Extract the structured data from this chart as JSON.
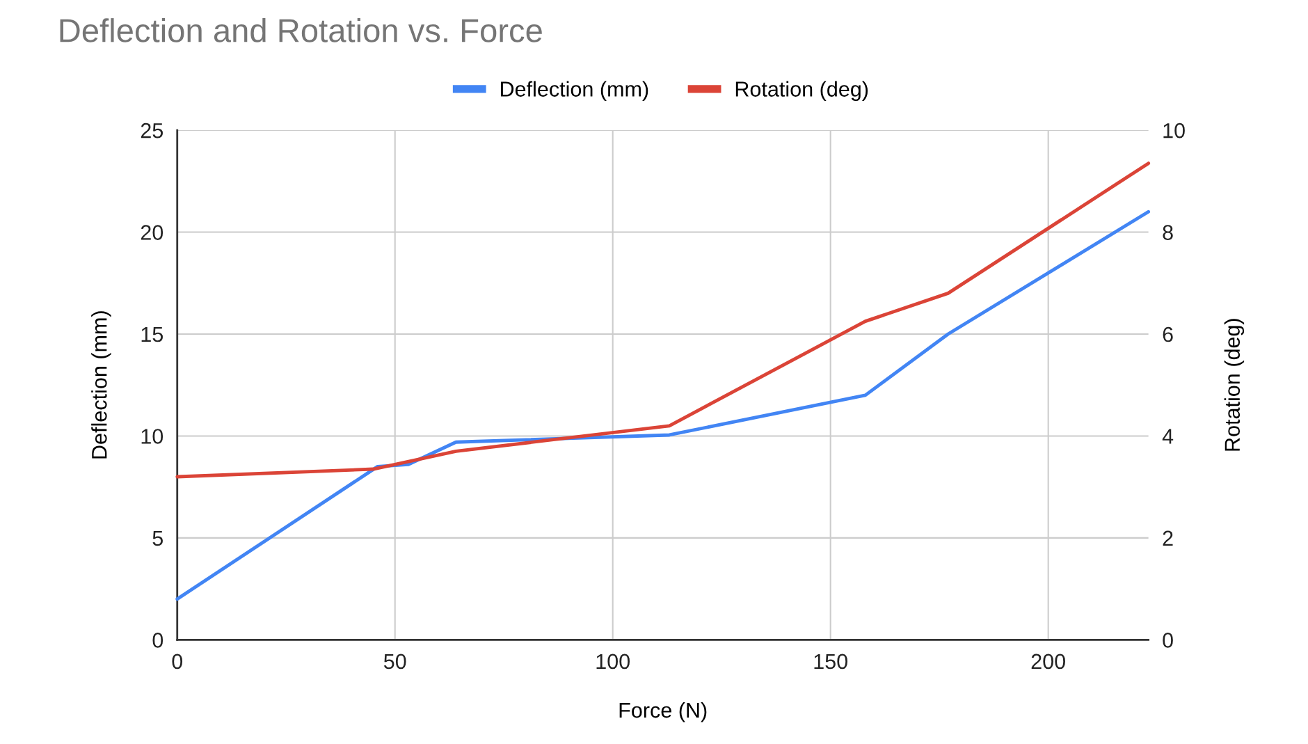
{
  "chart_data": {
    "type": "line",
    "title": "Deflection and Rotation vs. Force",
    "xlabel": "Force (N)",
    "ylabel": "Deflection (mm)",
    "y2label": "Rotation (deg)",
    "series": [
      {
        "name": "Deflection (mm)",
        "color": "#4285f4",
        "x": [
          0,
          46,
          53,
          64,
          113,
          158,
          177,
          223
        ],
        "values": [
          2,
          8.5,
          8.6,
          9.7,
          10.05,
          12,
          15,
          21
        ]
      },
      {
        "name": "Rotation (deg)",
        "color": "#db4437",
        "axis": "y2",
        "x": [
          0,
          45,
          64,
          113,
          158,
          177,
          223
        ],
        "values": [
          3.2,
          3.35,
          3.7,
          4.2,
          6.25,
          6.8,
          9.35
        ]
      }
    ],
    "xlim": [
      0,
      223
    ],
    "xticks": [
      0,
      50,
      100,
      150,
      200
    ],
    "ylim": [
      0,
      25
    ],
    "yticks": [
      0,
      5,
      10,
      15,
      20,
      25
    ],
    "y2lim": [
      0,
      10
    ],
    "y2ticks": [
      0,
      2,
      4,
      6,
      8,
      10
    ],
    "grid": true,
    "legend": "top",
    "marker": "none",
    "line_style": "solid"
  }
}
